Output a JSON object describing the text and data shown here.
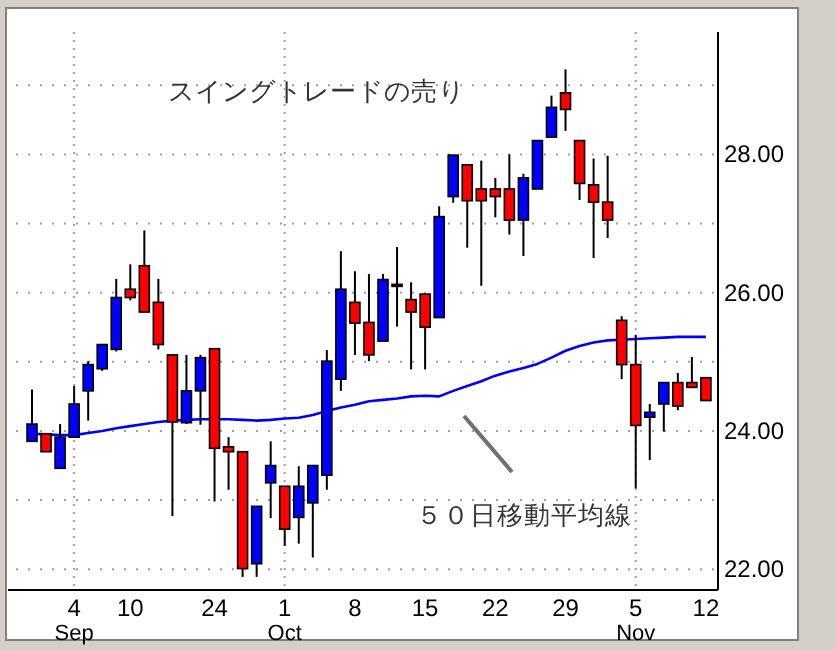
{
  "chart_data": {
    "type": "candlestick",
    "categories": [
      null,
      null,
      null,
      "4",
      null,
      null,
      null,
      "10",
      null,
      null,
      null,
      null,
      null,
      "24",
      null,
      null,
      null,
      null,
      "1",
      null,
      null,
      null,
      null,
      "8",
      null,
      null,
      null,
      null,
      "15",
      null,
      null,
      null,
      null,
      "22",
      null,
      null,
      null,
      null,
      "29",
      null,
      null,
      null,
      null,
      "5",
      null,
      null,
      null,
      null,
      "12"
    ],
    "ohlc": [
      [
        23.85,
        24.6,
        23.85,
        24.1
      ],
      [
        23.96,
        23.96,
        23.7,
        23.7
      ],
      [
        23.46,
        24.1,
        23.46,
        23.91
      ],
      [
        23.91,
        24.65,
        23.91,
        24.39
      ],
      [
        24.58,
        25.01,
        24.15,
        24.96
      ],
      [
        24.9,
        25.25,
        24.87,
        25.25
      ],
      [
        25.18,
        26.2,
        25.15,
        25.93
      ],
      [
        26.05,
        26.41,
        25.89,
        25.93
      ],
      [
        26.39,
        26.9,
        25.72,
        25.72
      ],
      [
        25.86,
        26.2,
        25.18,
        25.25
      ],
      [
        25.1,
        25.1,
        22.77,
        24.13
      ],
      [
        24.12,
        25.1,
        24.1,
        24.58
      ],
      [
        24.58,
        25.1,
        24.09,
        25.06
      ],
      [
        25.19,
        25.19,
        22.98,
        23.75
      ],
      [
        23.77,
        23.91,
        23.15,
        23.7
      ],
      [
        23.7,
        23.7,
        21.89,
        22.01
      ],
      [
        22.08,
        22.91,
        21.89,
        22.91
      ],
      [
        23.25,
        23.85,
        22.74,
        23.5
      ],
      [
        23.2,
        23.2,
        22.34,
        22.58
      ],
      [
        22.75,
        23.49,
        22.37,
        23.2
      ],
      [
        22.96,
        23.5,
        22.17,
        23.5
      ],
      [
        23.36,
        25.17,
        23.15,
        25.01
      ],
      [
        24.75,
        26.6,
        24.58,
        26.05
      ],
      [
        25.86,
        26.31,
        25.1,
        25.56
      ],
      [
        25.57,
        26.27,
        25.01,
        25.1
      ],
      [
        25.3,
        26.27,
        25.3,
        26.19
      ],
      [
        26.12,
        26.66,
        25.51,
        26.12
      ],
      [
        25.9,
        26.15,
        24.89,
        25.72
      ],
      [
        25.98,
        25.98,
        24.89,
        25.5
      ],
      [
        25.64,
        27.25,
        25.64,
        27.1
      ],
      [
        27.39,
        27.99,
        27.3,
        27.99
      ],
      [
        27.85,
        27.85,
        26.65,
        27.33
      ],
      [
        27.5,
        27.91,
        26.1,
        27.33
      ],
      [
        27.5,
        27.66,
        27.09,
        27.39
      ],
      [
        27.5,
        28.0,
        26.84,
        27.05
      ],
      [
        27.05,
        27.72,
        26.53,
        27.66
      ],
      [
        27.5,
        28.2,
        27.5,
        28.2
      ],
      [
        28.25,
        28.85,
        28.25,
        28.68
      ],
      [
        28.89,
        29.23,
        28.34,
        28.65
      ],
      [
        28.2,
        28.2,
        27.34,
        27.58
      ],
      [
        27.56,
        27.94,
        26.5,
        27.31
      ],
      [
        27.31,
        27.98,
        26.79,
        27.05
      ],
      [
        25.6,
        25.66,
        24.75,
        24.96
      ],
      [
        24.96,
        25.39,
        23.17,
        24.08
      ],
      [
        24.2,
        24.39,
        23.58,
        24.27
      ],
      [
        24.39,
        24.7,
        23.99,
        24.7
      ],
      [
        24.7,
        24.84,
        24.3,
        24.36
      ],
      [
        24.7,
        25.07,
        24.63,
        24.63
      ],
      [
        24.77,
        24.77,
        24.44,
        24.44
      ]
    ],
    "colors": [
      "#0000ff",
      "#ff0000",
      "#0000ff",
      "#0000ff",
      "#0000ff",
      "#0000ff",
      "#0000ff",
      "#ff0000",
      "#ff0000",
      "#ff0000",
      "#ff0000",
      "#0000ff",
      "#0000ff",
      "#ff0000",
      "#ff0000",
      "#ff0000",
      "#0000ff",
      "#0000ff",
      "#ff0000",
      "#0000ff",
      "#0000ff",
      "#0000ff",
      "#0000ff",
      "#ff0000",
      "#ff0000",
      "#0000ff",
      "#000000",
      "#ff0000",
      "#ff0000",
      "#0000ff",
      "#0000ff",
      "#ff0000",
      "#ff0000",
      "#ff0000",
      "#ff0000",
      "#0000ff",
      "#0000ff",
      "#0000ff",
      "#ff0000",
      "#ff0000",
      "#ff0000",
      "#ff0000",
      "#ff0000",
      "#ff0000",
      "#0000ff",
      "#0000ff",
      "#ff0000",
      "#ff0000",
      "#ff0000"
    ],
    "series": [
      {
        "type": "line",
        "color": "#0000ff",
        "values": [
          23.96,
          23.95,
          23.94,
          23.94,
          23.97,
          24.0,
          24.04,
          24.07,
          24.1,
          24.13,
          24.15,
          24.16,
          24.17,
          24.17,
          24.17,
          24.16,
          24.15,
          24.16,
          24.18,
          24.19,
          24.23,
          24.29,
          24.34,
          24.38,
          24.43,
          24.45,
          24.47,
          24.5,
          24.51,
          24.5,
          24.58,
          24.65,
          24.72,
          24.8,
          24.86,
          24.91,
          24.97,
          25.06,
          25.16,
          25.23,
          25.28,
          25.31,
          25.32,
          25.33,
          25.34,
          25.35,
          25.36,
          25.36,
          25.36
        ]
      }
    ],
    "ylim": [
      21.7,
      29.77
    ],
    "yticks": [
      {
        "value": 22,
        "label": "22.00"
      },
      {
        "value": 23,
        "label": null
      },
      {
        "value": 24,
        "label": "24.00"
      },
      {
        "value": 25,
        "label": null
      },
      {
        "value": 26,
        "label": "26.00"
      },
      {
        "value": 27,
        "label": null
      },
      {
        "value": 28,
        "label": "28.00"
      },
      {
        "value": 29,
        "label": null
      }
    ],
    "grid": true,
    "annotations": [
      "スイングトレードの売り",
      "５０日移動平均線",
      "Sep",
      "Oct",
      "Nov"
    ]
  }
}
